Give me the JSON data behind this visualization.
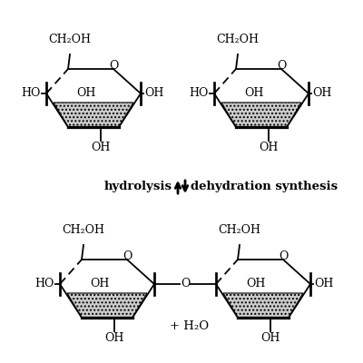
{
  "bg_color": "#ffffff",
  "line_color": "#000000",
  "hatch_color": "#aaaaaa",
  "hydrolysis_label": "hydrolysis",
  "dehydration_label": "dehydration synthesis",
  "water_label": "+ H₂O",
  "oxygen_label": "O",
  "ch2oh_label": "CH₂OH",
  "ho_label": "HO",
  "oh_label": "OH",
  "figsize": [
    4.0,
    4.0
  ],
  "dpi": 100
}
